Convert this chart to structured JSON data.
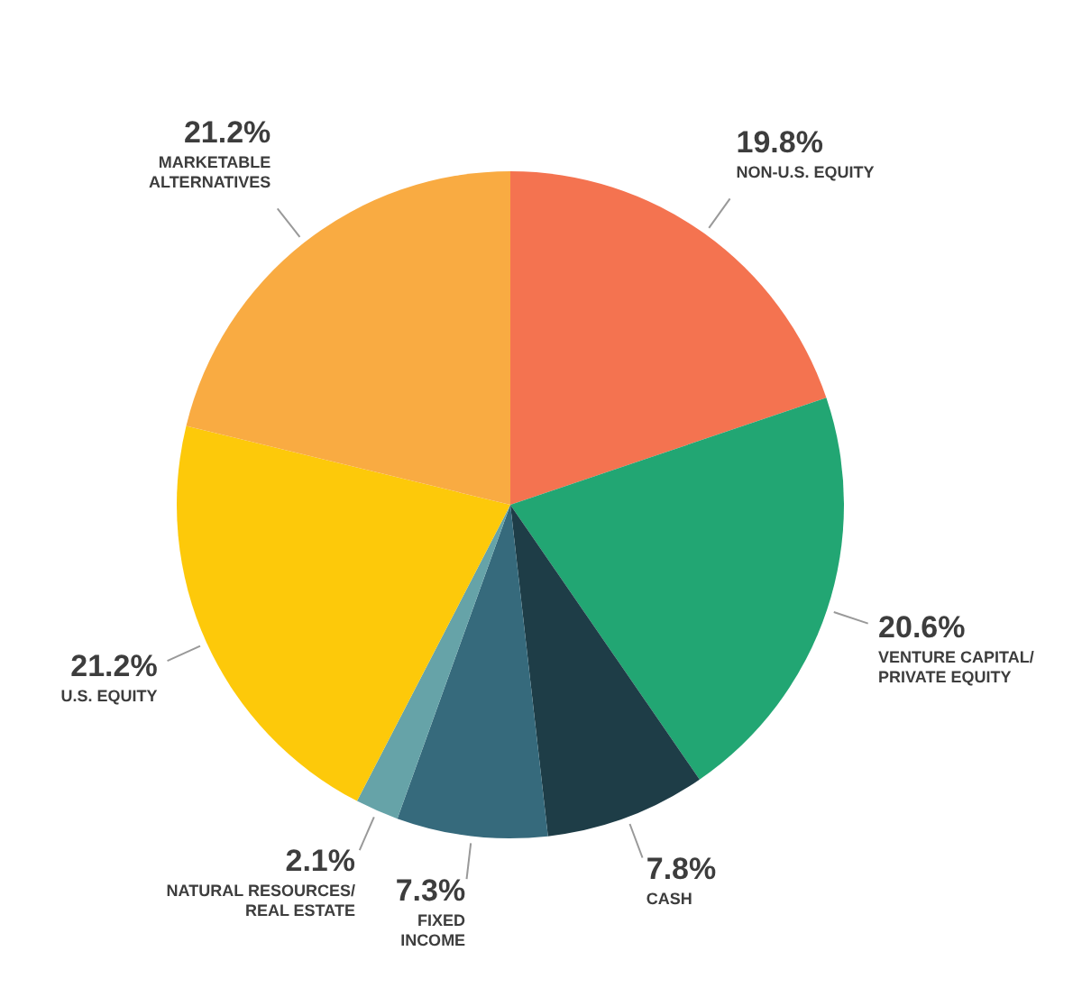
{
  "chart_data": {
    "type": "pie",
    "categories": [
      "NON-U.S. EQUITY",
      "VENTURE CAPITAL/\nPRIVATE EQUITY",
      "CASH",
      "FIXED\nINCOME",
      "NATURAL RESOURCES/\nREAL ESTATE",
      "U.S. EQUITY",
      "MARKETABLE\nALTERNATIVES"
    ],
    "values": [
      19.8,
      20.6,
      7.8,
      7.3,
      2.1,
      21.2,
      21.2
    ],
    "value_labels": [
      "19.8%",
      "20.6%",
      "7.8%",
      "7.3%",
      "2.1%",
      "21.2%",
      "21.2%"
    ],
    "colors": [
      "#f47350",
      "#22a673",
      "#1e3d47",
      "#366a7c",
      "#66a3a8",
      "#fdc90a",
      "#f9ab42"
    ]
  }
}
